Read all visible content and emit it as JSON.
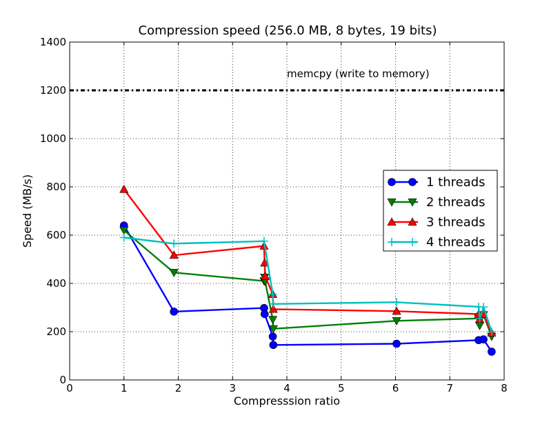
{
  "chart_data": {
    "type": "line",
    "title": "Compression speed (256.0 MB, 8 bytes, 19 bits)",
    "xlabel": "Compresssion ratio",
    "ylabel": "Speed (MB/s)",
    "xlim": [
      0,
      8
    ],
    "ylim": [
      0,
      1400
    ],
    "xticks": [
      0,
      1,
      2,
      3,
      4,
      5,
      6,
      7,
      8
    ],
    "yticks": [
      0,
      200,
      400,
      600,
      800,
      1000,
      1200,
      1400
    ],
    "grid": true,
    "legend_position": "right",
    "reference_line": {
      "label": "memcpy (write to memory)",
      "y": 1200,
      "color": "#000000"
    },
    "series": [
      {
        "name": "1 threads",
        "color": "#0000ff",
        "marker": "circle",
        "points": [
          [
            1.0,
            640
          ],
          [
            1.92,
            283
          ],
          [
            3.58,
            298
          ],
          [
            3.59,
            273
          ],
          [
            3.74,
            180
          ],
          [
            3.75,
            145
          ],
          [
            6.02,
            150
          ],
          [
            7.53,
            165
          ],
          [
            7.62,
            168
          ],
          [
            7.77,
            117
          ]
        ]
      },
      {
        "name": "2 threads",
        "color": "#008000",
        "marker": "triangle-down",
        "points": [
          [
            1.0,
            620
          ],
          [
            1.92,
            445
          ],
          [
            3.58,
            410
          ],
          [
            3.59,
            425
          ],
          [
            3.6,
            408
          ],
          [
            3.74,
            250
          ],
          [
            3.75,
            212
          ],
          [
            6.02,
            245
          ],
          [
            7.53,
            255
          ],
          [
            7.55,
            225
          ],
          [
            7.62,
            270
          ],
          [
            7.77,
            180
          ]
        ]
      },
      {
        "name": "3 threads",
        "color": "#ff0000",
        "marker": "triangle-up",
        "points": [
          [
            1.0,
            790
          ],
          [
            1.92,
            517
          ],
          [
            3.58,
            555
          ],
          [
            3.59,
            485
          ],
          [
            3.6,
            430
          ],
          [
            3.74,
            355
          ],
          [
            3.75,
            293
          ],
          [
            6.02,
            285
          ],
          [
            7.53,
            273
          ],
          [
            7.55,
            252
          ],
          [
            7.62,
            272
          ],
          [
            7.77,
            195
          ]
        ]
      },
      {
        "name": "4 threads",
        "color": "#00bfbf",
        "marker": "plus",
        "points": [
          [
            1.0,
            590
          ],
          [
            1.92,
            565
          ],
          [
            3.58,
            575
          ],
          [
            3.74,
            355
          ],
          [
            3.75,
            315
          ],
          [
            6.02,
            322
          ],
          [
            7.53,
            303
          ],
          [
            7.55,
            255
          ],
          [
            7.62,
            302
          ],
          [
            7.77,
            200
          ]
        ]
      }
    ]
  }
}
